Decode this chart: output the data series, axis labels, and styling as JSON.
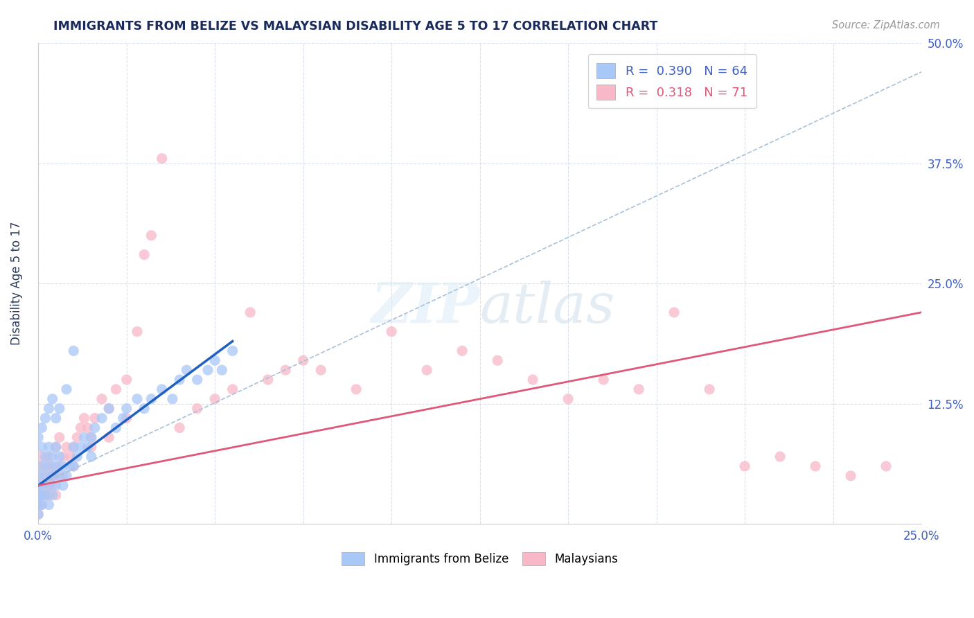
{
  "title": "IMMIGRANTS FROM BELIZE VS MALAYSIAN DISABILITY AGE 5 TO 17 CORRELATION CHART",
  "source": "Source: ZipAtlas.com",
  "ylabel": "Disability Age 5 to 17",
  "xlim": [
    0.0,
    0.25
  ],
  "ylim": [
    0.0,
    0.5
  ],
  "xticks": [
    0.0,
    0.025,
    0.05,
    0.075,
    0.1,
    0.125,
    0.15,
    0.175,
    0.2,
    0.225,
    0.25
  ],
  "xticklabels": [
    "0.0%",
    "",
    "",
    "",
    "",
    "",
    "",
    "",
    "",
    "",
    "25.0%"
  ],
  "yticks": [
    0.0,
    0.125,
    0.25,
    0.375,
    0.5
  ],
  "yticklabels_right": [
    "",
    "12.5%",
    "25.0%",
    "37.5%",
    "50.0%"
  ],
  "legend_blue_label": "R =  0.390   N = 64",
  "legend_pink_label": "R =  0.318   N = 71",
  "blue_color": "#a8c8f8",
  "pink_color": "#f8b8c8",
  "blue_line_color": "#2060c0",
  "pink_line_color": "#e05878",
  "dashed_line_color": "#a8c0d8",
  "title_color": "#1a2a5a",
  "axis_label_color": "#2a3a5a",
  "tick_color": "#4060c0",
  "grid_color": "#d8e0f0",
  "background_color": "#ffffff",
  "watermark_text": "ZIPatlas",
  "blue_scatter_x": [
    0.0,
    0.0,
    0.0,
    0.0,
    0.0,
    0.001,
    0.001,
    0.001,
    0.001,
    0.001,
    0.002,
    0.002,
    0.002,
    0.003,
    0.003,
    0.003,
    0.003,
    0.004,
    0.004,
    0.004,
    0.005,
    0.005,
    0.005,
    0.006,
    0.006,
    0.007,
    0.007,
    0.008,
    0.009,
    0.01,
    0.01,
    0.011,
    0.012,
    0.013,
    0.014,
    0.015,
    0.015,
    0.016,
    0.018,
    0.02,
    0.022,
    0.024,
    0.025,
    0.028,
    0.03,
    0.032,
    0.035,
    0.038,
    0.04,
    0.042,
    0.045,
    0.048,
    0.05,
    0.052,
    0.055,
    0.0,
    0.001,
    0.002,
    0.003,
    0.004,
    0.005,
    0.006,
    0.008,
    0.01
  ],
  "blue_scatter_y": [
    0.01,
    0.02,
    0.03,
    0.04,
    0.05,
    0.02,
    0.03,
    0.04,
    0.06,
    0.08,
    0.03,
    0.05,
    0.07,
    0.02,
    0.04,
    0.06,
    0.08,
    0.03,
    0.05,
    0.07,
    0.04,
    0.06,
    0.08,
    0.05,
    0.07,
    0.04,
    0.06,
    0.05,
    0.06,
    0.06,
    0.08,
    0.07,
    0.08,
    0.09,
    0.08,
    0.07,
    0.09,
    0.1,
    0.11,
    0.12,
    0.1,
    0.11,
    0.12,
    0.13,
    0.12,
    0.13,
    0.14,
    0.13,
    0.15,
    0.16,
    0.15,
    0.16,
    0.17,
    0.16,
    0.18,
    0.09,
    0.1,
    0.11,
    0.12,
    0.13,
    0.11,
    0.12,
    0.14,
    0.18
  ],
  "pink_scatter_x": [
    0.0,
    0.0,
    0.0,
    0.001,
    0.001,
    0.001,
    0.002,
    0.002,
    0.003,
    0.003,
    0.003,
    0.004,
    0.004,
    0.005,
    0.005,
    0.006,
    0.006,
    0.007,
    0.008,
    0.009,
    0.01,
    0.011,
    0.012,
    0.013,
    0.014,
    0.015,
    0.016,
    0.018,
    0.02,
    0.022,
    0.025,
    0.028,
    0.03,
    0.032,
    0.035,
    0.04,
    0.045,
    0.05,
    0.055,
    0.06,
    0.065,
    0.07,
    0.075,
    0.08,
    0.09,
    0.1,
    0.11,
    0.12,
    0.13,
    0.14,
    0.15,
    0.16,
    0.17,
    0.18,
    0.19,
    0.2,
    0.21,
    0.22,
    0.23,
    0.24,
    0.0,
    0.001,
    0.002,
    0.003,
    0.004,
    0.005,
    0.007,
    0.01,
    0.015,
    0.02,
    0.025
  ],
  "pink_scatter_y": [
    0.02,
    0.04,
    0.06,
    0.03,
    0.05,
    0.07,
    0.04,
    0.06,
    0.03,
    0.05,
    0.07,
    0.04,
    0.06,
    0.05,
    0.08,
    0.06,
    0.09,
    0.07,
    0.08,
    0.07,
    0.08,
    0.09,
    0.1,
    0.11,
    0.1,
    0.09,
    0.11,
    0.13,
    0.12,
    0.14,
    0.15,
    0.2,
    0.28,
    0.3,
    0.38,
    0.1,
    0.12,
    0.13,
    0.14,
    0.22,
    0.15,
    0.16,
    0.17,
    0.16,
    0.14,
    0.2,
    0.16,
    0.18,
    0.17,
    0.15,
    0.13,
    0.15,
    0.14,
    0.22,
    0.14,
    0.06,
    0.07,
    0.06,
    0.05,
    0.06,
    0.01,
    0.02,
    0.03,
    0.04,
    0.05,
    0.03,
    0.05,
    0.06,
    0.08,
    0.09,
    0.11
  ],
  "blue_trend_x": [
    0.0,
    0.055
  ],
  "blue_trend_y": [
    0.04,
    0.19
  ],
  "pink_trend_x": [
    0.0,
    0.25
  ],
  "pink_trend_y": [
    0.04,
    0.22
  ],
  "dashed_trend_x": [
    0.0,
    0.25
  ],
  "dashed_trend_y": [
    0.04,
    0.47
  ]
}
